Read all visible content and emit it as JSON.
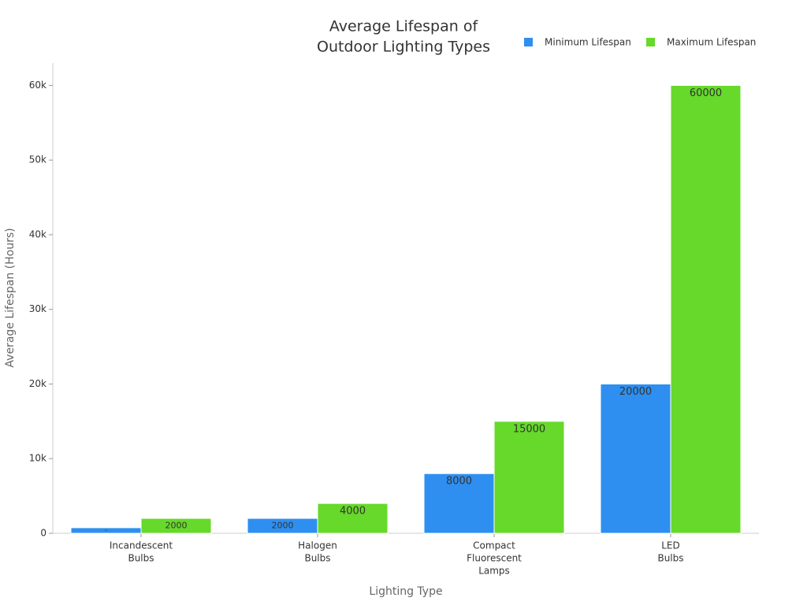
{
  "chart_data": {
    "type": "bar",
    "title": [
      "Average Lifespan of",
      "Outdoor Lighting Types"
    ],
    "x_label": "Lighting Type",
    "y_label": "Average Lifespan (Hours)",
    "categories": [
      [
        "Incandescent",
        "Bulbs"
      ],
      [
        "Halogen",
        "Bulbs"
      ],
      [
        "Compact",
        "Fluorescent",
        "Lamps"
      ],
      [
        "LED",
        "Bulbs"
      ]
    ],
    "series": [
      {
        "name": "Minimum Lifespan",
        "color": "#2e8ff0",
        "values": [
          750,
          2000,
          8000,
          20000
        ]
      },
      {
        "name": "Maximum Lifespan",
        "color": "#66d92a",
        "values": [
          2000,
          4000,
          15000,
          60000
        ]
      }
    ],
    "ylim": [
      0,
      63000
    ],
    "yticks": [
      0,
      {
        "value": 10000,
        "label": "10k"
      },
      {
        "value": 20000,
        "label": "20k"
      },
      {
        "value": 30000,
        "label": "30k"
      },
      {
        "value": 40000,
        "label": "40k"
      },
      {
        "value": 50000,
        "label": "50k"
      },
      {
        "value": 60000,
        "label": "60k"
      }
    ],
    "legend": "top-right"
  }
}
